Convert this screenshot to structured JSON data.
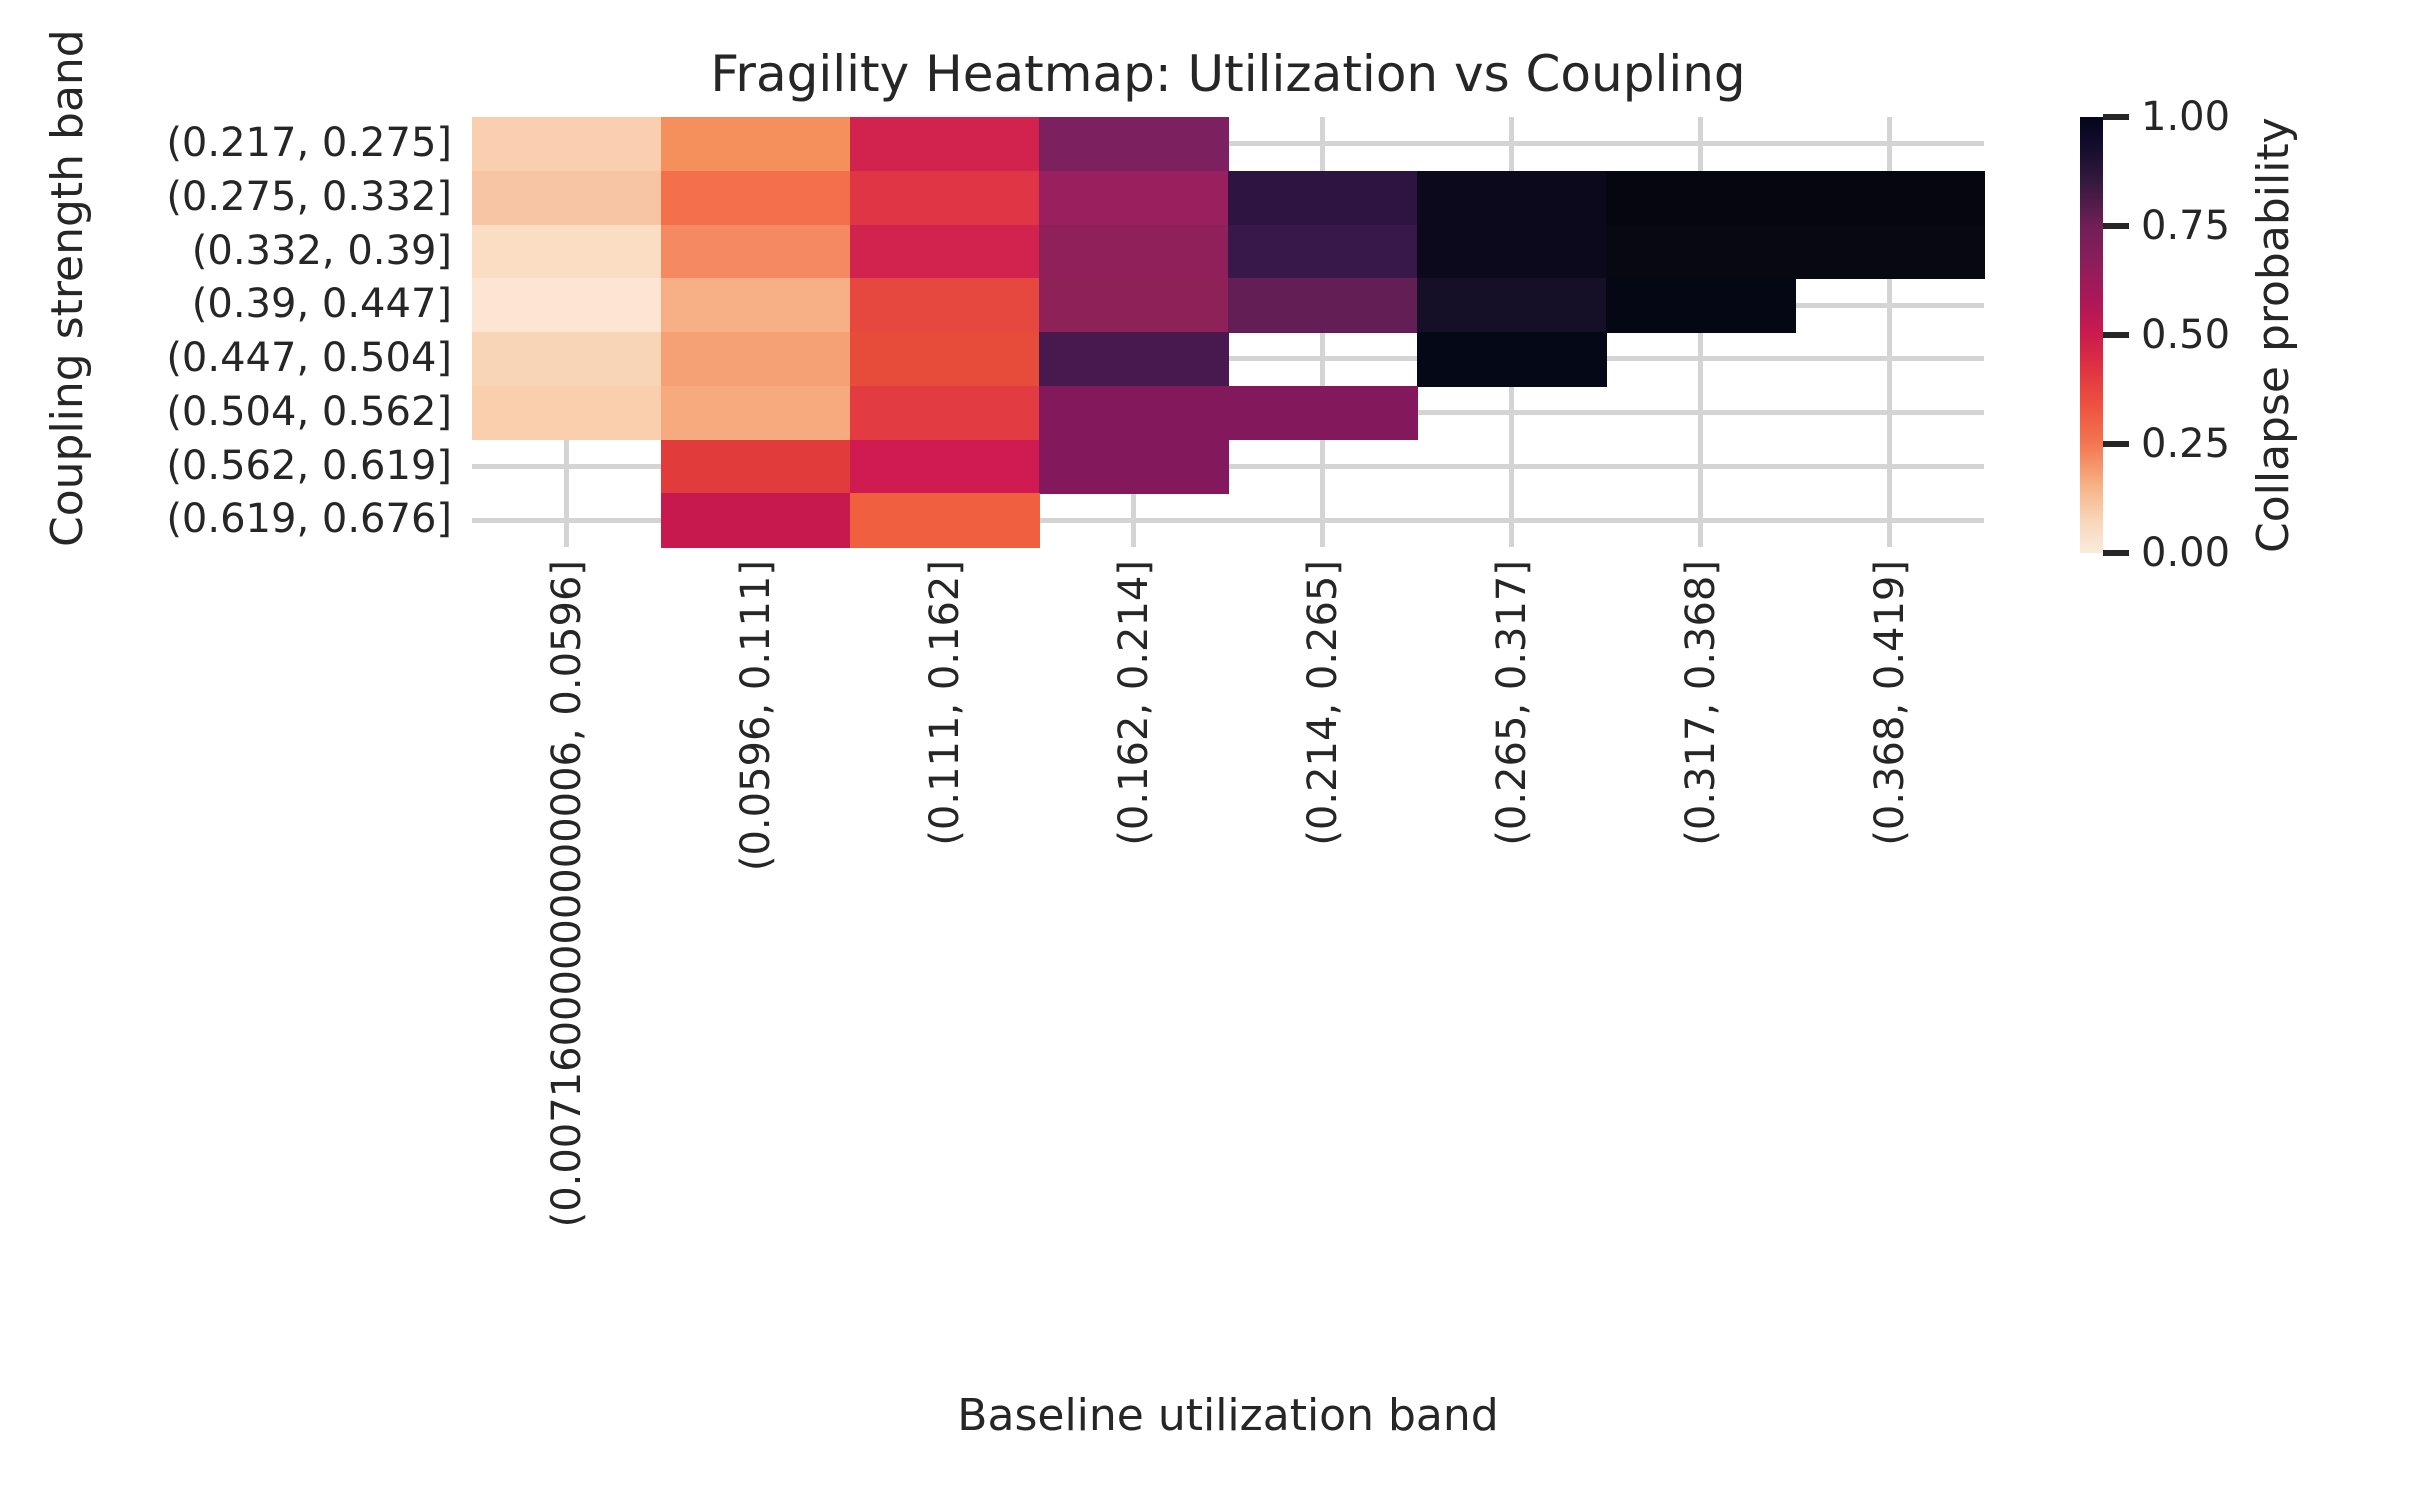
{
  "title": "Fragility Heatmap: Utilization vs Coupling",
  "x_axis": {
    "label": "Baseline utilization band",
    "ticks": [
      "(0.00716000000000006, 0.0596]",
      "(0.0596, 0.111]",
      "(0.111, 0.162]",
      "(0.162, 0.214]",
      "(0.214, 0.265]",
      "(0.265, 0.317]",
      "(0.317, 0.368]",
      "(0.368, 0.419]"
    ]
  },
  "y_axis": {
    "label": "Coupling strength band",
    "ticks": [
      "(0.217, 0.275]",
      "(0.275, 0.332]",
      "(0.332, 0.39]",
      "(0.39, 0.447]",
      "(0.447, 0.504]",
      "(0.504, 0.562]",
      "(0.562, 0.619]",
      "(0.619, 0.676]"
    ]
  },
  "colorbar": {
    "label": "Collapse probability",
    "tick_labels": [
      "1.00",
      "0.75",
      "0.50",
      "0.25",
      "0.00"
    ],
    "tick_values": [
      1.0,
      0.75,
      0.5,
      0.25,
      0.0
    ],
    "gradient_top_to_bottom": [
      {
        "p": 0,
        "c": "#03051A"
      },
      {
        "p": 7,
        "c": "#150D2E"
      },
      {
        "p": 15,
        "c": "#35193E"
      },
      {
        "p": 25,
        "c": "#701F57"
      },
      {
        "p": 33,
        "c": "#8A1E5B"
      },
      {
        "p": 42,
        "c": "#AD1759"
      },
      {
        "p": 50,
        "c": "#CB1B4E"
      },
      {
        "p": 58,
        "c": "#E13342"
      },
      {
        "p": 67,
        "c": "#EF5541"
      },
      {
        "p": 75,
        "c": "#F37651"
      },
      {
        "p": 85,
        "c": "#F7B488"
      },
      {
        "p": 93,
        "c": "#F9D7BC"
      },
      {
        "p": 100,
        "c": "#FAEBDD"
      }
    ]
  },
  "style": {
    "grid_color": "#d4d4d4",
    "text_color": "#262626",
    "background": "#ffffff"
  },
  "chart_data": {
    "type": "heatmap",
    "title": "Fragility Heatmap: Utilization vs Coupling",
    "xlabel": "Baseline utilization band",
    "ylabel": "Coupling strength band",
    "colorbar_label": "Collapse probability",
    "colormap": "rocket_r",
    "value_range": [
      0.0,
      1.0
    ],
    "grid": true,
    "legend_position": "right-colorbar",
    "x_categories": [
      "(0.00716000000000006, 0.0596]",
      "(0.0596, 0.111]",
      "(0.111, 0.162]",
      "(0.162, 0.214]",
      "(0.214, 0.265]",
      "(0.265, 0.317]",
      "(0.317, 0.368]",
      "(0.368, 0.419]"
    ],
    "y_categories": [
      "(0.217, 0.275]",
      "(0.275, 0.332]",
      "(0.332, 0.39]",
      "(0.39, 0.447]",
      "(0.447, 0.504]",
      "(0.504, 0.562]",
      "(0.562, 0.619]",
      "(0.619, 0.676]"
    ],
    "values": [
      [
        0.1,
        0.21,
        0.48,
        0.71,
        null,
        null,
        null,
        null
      ],
      [
        0.13,
        0.26,
        0.41,
        0.64,
        0.87,
        0.96,
        0.99,
        0.99
      ],
      [
        0.06,
        0.22,
        0.48,
        0.67,
        0.84,
        0.96,
        0.98,
        0.98
      ],
      [
        0.04,
        0.16,
        0.38,
        0.67,
        0.76,
        0.94,
        0.98,
        null
      ],
      [
        0.09,
        0.18,
        0.37,
        0.81,
        null,
        0.99,
        null,
        null
      ],
      [
        0.1,
        0.17,
        0.4,
        0.69,
        0.69,
        null,
        null,
        null
      ],
      [
        null,
        0.4,
        0.49,
        0.69,
        null,
        null,
        null,
        null
      ],
      [
        null,
        0.51,
        0.29,
        null,
        null,
        null,
        null,
        null
      ]
    ],
    "cell_colors": [
      [
        "#f9cfb0",
        "#f5905c",
        "#d2234e",
        "#7d2060",
        null,
        null,
        null,
        null
      ],
      [
        "#f7c5a4",
        "#f4704b",
        "#df3545",
        "#9a1f5e",
        "#2e1440",
        "#0d091d",
        "#05060f",
        "#05060f"
      ],
      [
        "#fbddc4",
        "#f58a62",
        "#d2234e",
        "#8f2059",
        "#38184a",
        "#0d091d",
        "#070812",
        "#070812"
      ],
      [
        "#fce5d2",
        "#f7af85",
        "#e6473f",
        "#8e2158",
        "#641e56",
        "#150f28",
        "#060714",
        null
      ],
      [
        "#f9d5b8",
        "#f5a175",
        "#e74b39",
        "#48194f",
        null,
        "#050816",
        null,
        null
      ],
      [
        "#f9cfae",
        "#f6aa7e",
        "#e23c42",
        "#83195c",
        "#83195c",
        null,
        null,
        null
      ],
      [
        null,
        "#e23b3c",
        "#cf1b51",
        "#83195c",
        null,
        null,
        null,
        null
      ],
      [
        null,
        "#c8194e",
        "#f0603f",
        null,
        null,
        null,
        null,
        null
      ]
    ]
  }
}
